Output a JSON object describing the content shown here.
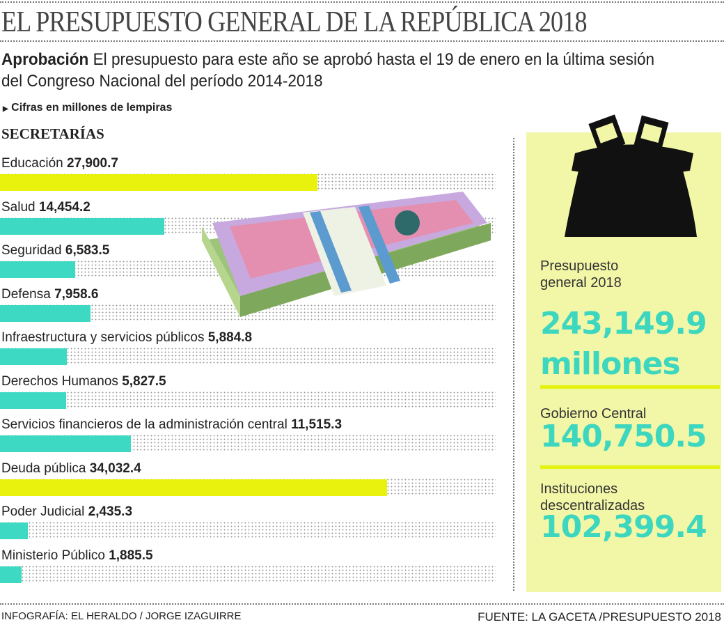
{
  "header": {
    "title": "EL PRESUPUESTO GENERAL DE LA REPÚBLICA 2018",
    "intro_bold": "Aprobación",
    "intro_text": "El presupuesto para este año se aprobó hasta el 19 de enero en la última sesión del Congreso Nacional del período 2014-2018",
    "unit_note": "Cifras en millones de lempiras",
    "section": "SECRETARÍAS"
  },
  "chart_data": {
    "type": "bar",
    "orientation": "horizontal",
    "title": "SECRETARÍAS",
    "categories": [
      "Educación",
      "Salud",
      "Seguridad",
      "Defensa",
      "Infraestructura y servicios públicos",
      "Derechos Humanos",
      "Servicios financieros de la administración central",
      "Deuda pública",
      "Poder Judicial",
      "Ministerio Público"
    ],
    "values": [
      27900.7,
      14454.2,
      6583.5,
      7958.6,
      5884.8,
      5827.5,
      11515.3,
      34032.4,
      2435.3,
      1885.5
    ],
    "value_labels": [
      "27,900.7",
      "14,454.2",
      "6,583.5",
      "7,958.6",
      "5,884.8",
      "5,827.5",
      "11,515.3",
      "34,032.4",
      "2,435.3",
      "1,885.5"
    ],
    "bar_colors": [
      "#e8f20c",
      "#3dd9c3",
      "#3dd9c3",
      "#3dd9c3",
      "#3dd9c3",
      "#3dd9c3",
      "#3dd9c3",
      "#e8f20c",
      "#3dd9c3",
      "#3dd9c3"
    ],
    "grid": false
  },
  "panel": {
    "total_label": "Presupuesto general 2018",
    "total_value": "243,149.9",
    "total_unit": "millones",
    "central_label": "Gobierno Central",
    "central_value": "140,750.5",
    "decentral_label": "Instituciones descentralizadas",
    "decentral_value": "102,399.4",
    "accent": "#3dd6bf",
    "background": "#f2f7a8"
  },
  "footer": {
    "credit": "INFOGRAFÍA: EL HERALDO / JORGE IZAGUIRRE",
    "source": "FUENTE: LA GACETA /PRESUPUESTO 2018"
  }
}
